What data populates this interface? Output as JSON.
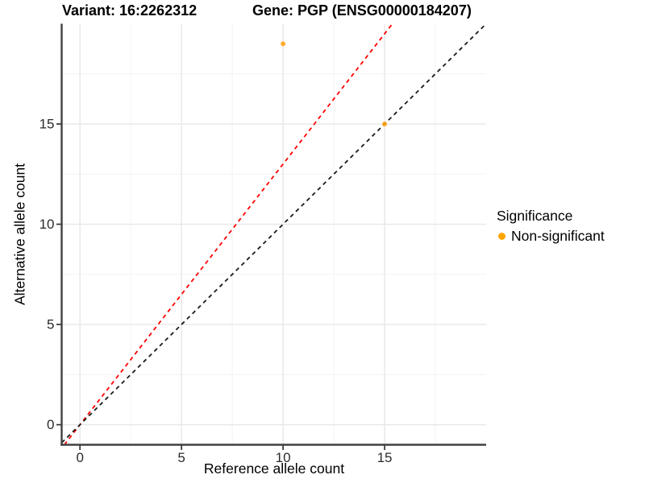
{
  "chart_data": {
    "type": "scatter",
    "title_variant": "Variant: 16:2262312",
    "title_gene": "Gene: PGP (ENSG00000184207)",
    "xlabel": "Reference allele count",
    "ylabel": "Alternative allele count",
    "x_ticks": [
      0,
      5,
      10,
      15
    ],
    "y_ticks": [
      0,
      5,
      10,
      15
    ],
    "xlim": [
      -0.9,
      20
    ],
    "ylim": [
      -1,
      20
    ],
    "grid": true,
    "points": [
      {
        "x": 10,
        "y": 19,
        "series": "Non-significant"
      },
      {
        "x": 15,
        "y": 15,
        "series": "Non-significant"
      }
    ],
    "lines": [
      {
        "name": "expected-ratio-line",
        "slope": 1.3,
        "intercept": 0,
        "color": "#FF0000",
        "style": "dashed"
      },
      {
        "name": "identity-line",
        "slope": 1,
        "intercept": 0,
        "color": "#1a1a1a",
        "style": "dashed"
      }
    ],
    "legend": {
      "title": "Significance",
      "position": "right",
      "entries": [
        {
          "label": "Non-significant",
          "color": "#FFA500"
        }
      ]
    },
    "colors": {
      "point": "#FFA319",
      "grid_major": "#E7E7E7",
      "grid_minor": "#F3F3F3",
      "axis_line": "#404040",
      "tick_mark": "#333333",
      "tick_label": "#2b2b2b"
    }
  }
}
